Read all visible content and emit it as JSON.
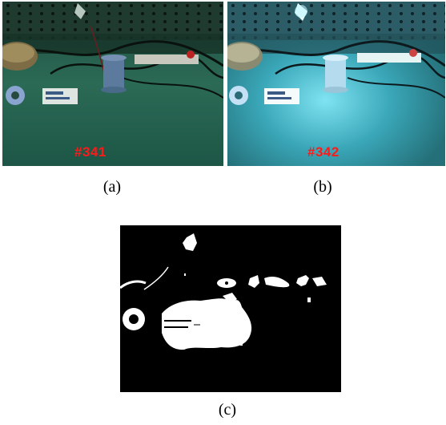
{
  "figure": {
    "panels": [
      {
        "id": "a",
        "caption": "(a)",
        "frame_label": "#341",
        "lighting": "ambient"
      },
      {
        "id": "b",
        "caption": "(b)",
        "frame_label": "#342",
        "lighting": "blue-illuminated"
      },
      {
        "id": "c",
        "caption": "(c)",
        "content": "binary-mask"
      }
    ],
    "colors": {
      "frame_label": "#ff1a1a",
      "scene_a_floor": "#2b6a55",
      "scene_b_floor": "#3aa7b8",
      "mask_background": "#000000",
      "mask_foreground": "#ffffff"
    }
  }
}
